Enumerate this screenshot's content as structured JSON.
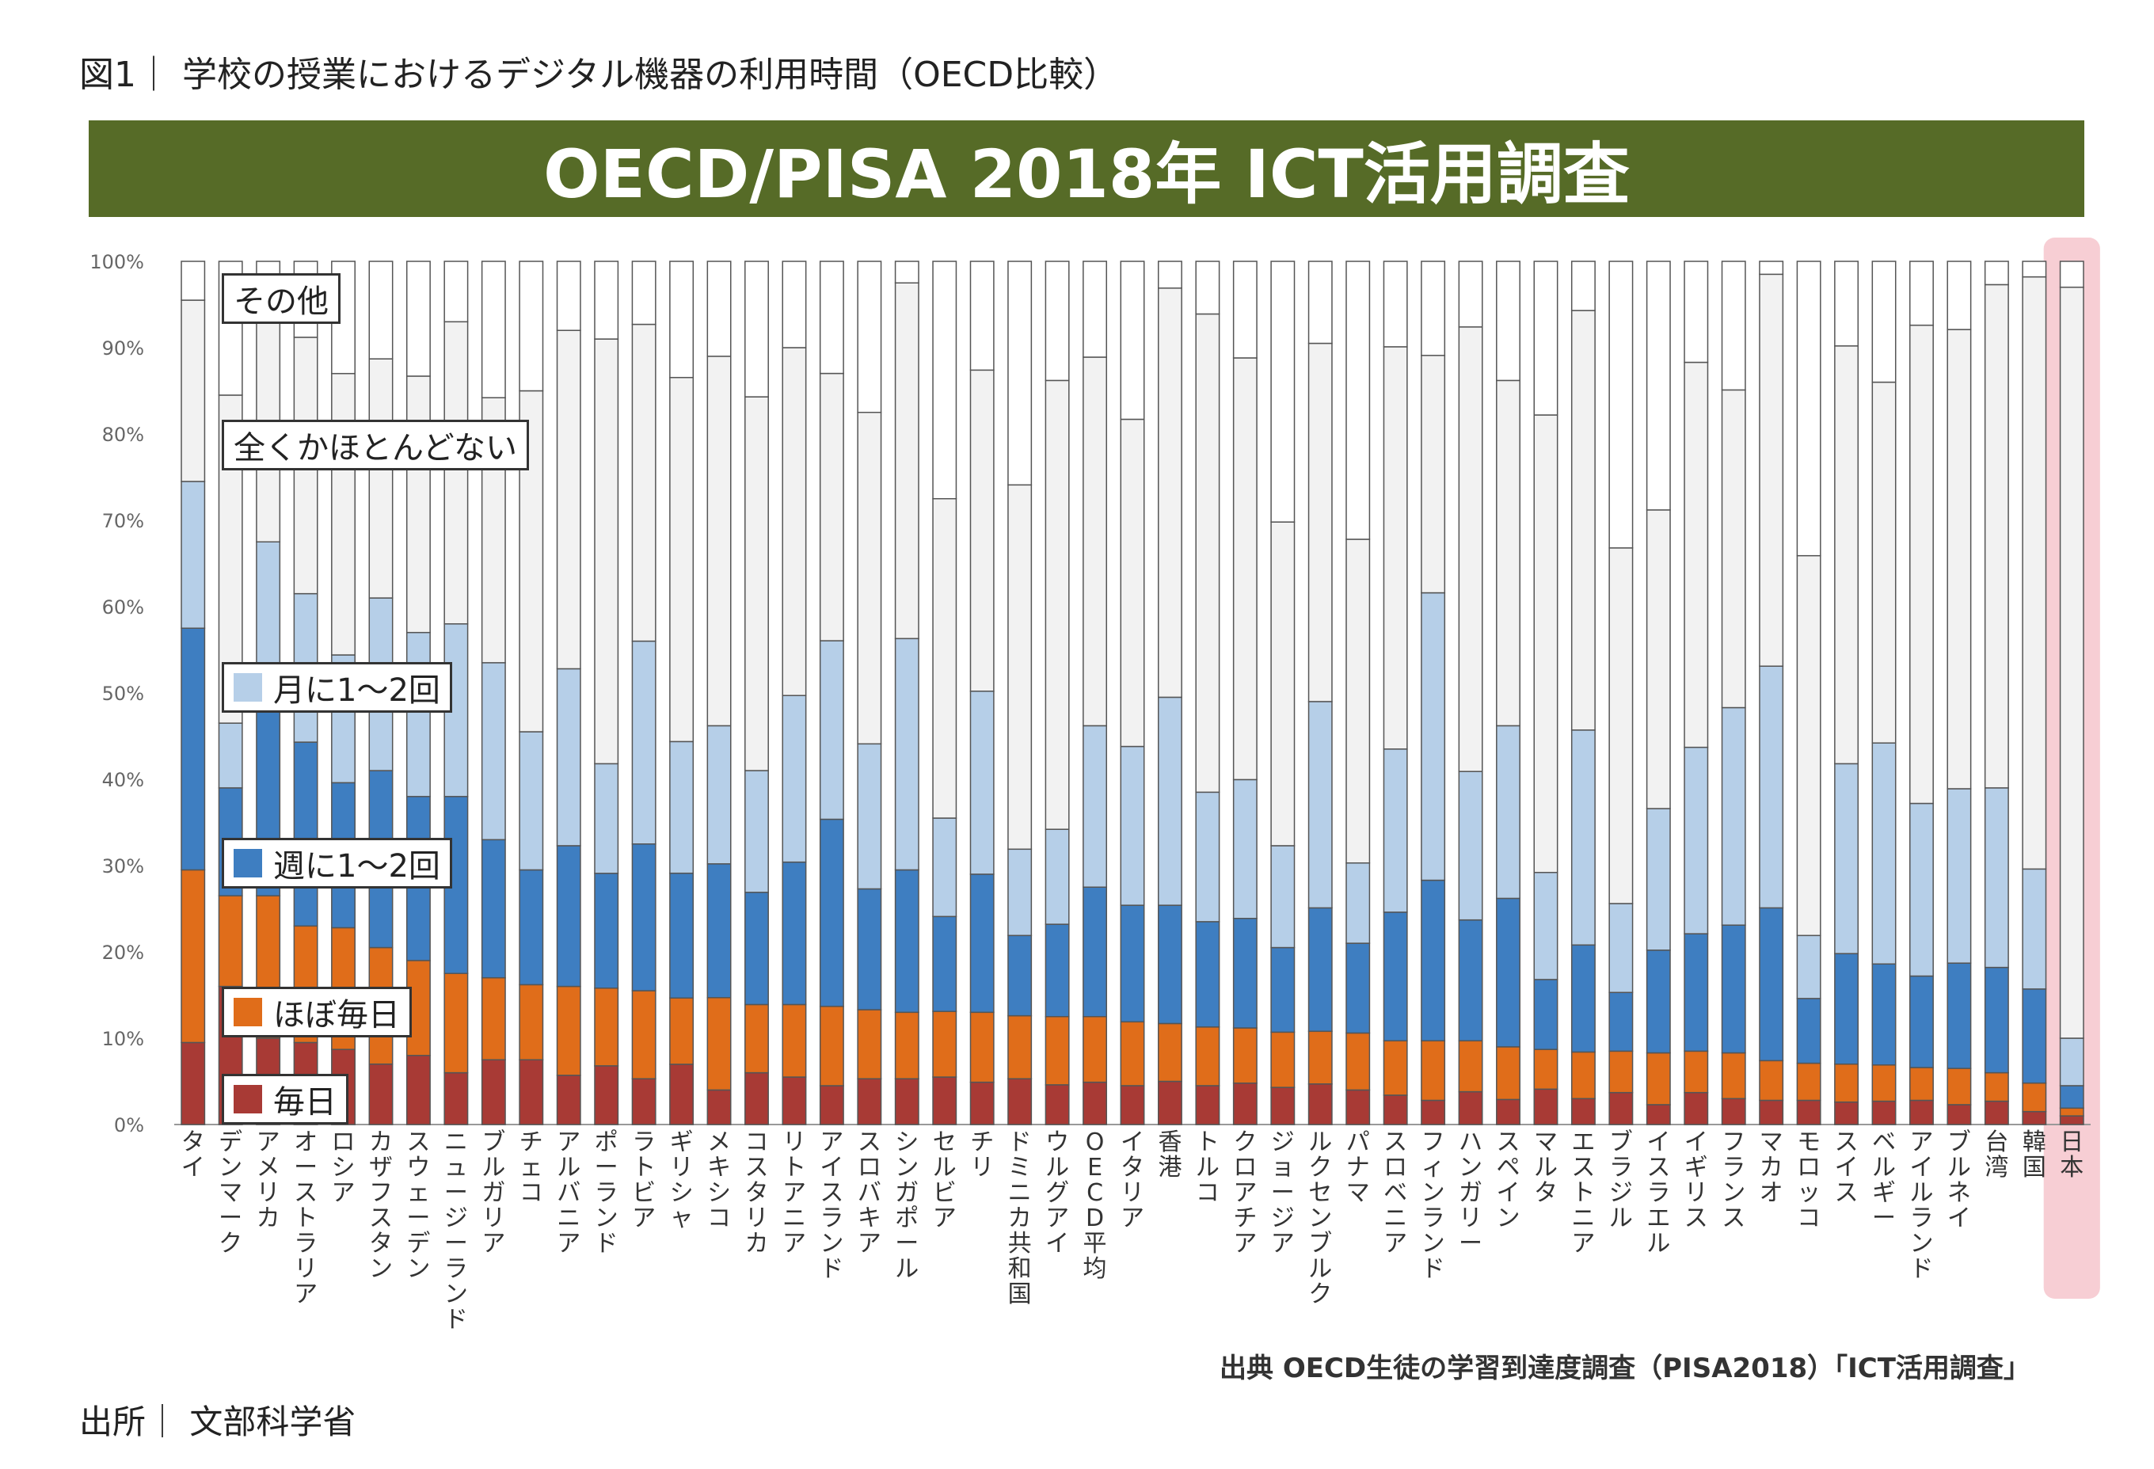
{
  "figure": {
    "title": "図1｜ 学校の授業におけるデジタル機器の利用時間（OECD比較）",
    "banner": "OECD/PISA 2018年  ICT活用調査",
    "credit": "出典  OECD生徒の学習到達度調査（PISA2018）「ICT活用調査」",
    "source": "出所｜ 文部科学省"
  },
  "colors": {
    "daily": "#a83a35",
    "almost_daily": "#e06d1a",
    "weekly": "#3e7ec1",
    "monthly": "#b6cfe8",
    "never": "#f2f2f2",
    "other": "#ffffff",
    "highlight": "#f6c6cc",
    "banner": "#566b27"
  },
  "chart_data": {
    "type": "bar",
    "stacked": true,
    "highlight_category": "日本",
    "ylim": [
      0,
      100
    ],
    "yticks": [
      "0%",
      "10%",
      "20%",
      "30%",
      "40%",
      "50%",
      "60%",
      "70%",
      "80%",
      "90%",
      "100%"
    ],
    "categories": [
      "タイ",
      "デンマーク",
      "アメリカ",
      "オーストラリア",
      "ロシア",
      "カザフスタン",
      "スウェーデン",
      "ニュージーランド",
      "ブルガリア",
      "チェコ",
      "アルバニア",
      "ポーランド",
      "ラトビア",
      "ギリシャ",
      "メキシコ",
      "コスタリカ",
      "リトアニア",
      "アイスランド",
      "スロバキア",
      "シンガポール",
      "セルビア",
      "チリ",
      "ドミニカ共和国",
      "ウルグアイ",
      "OECD平均",
      "イタリア",
      "香港",
      "トルコ",
      "クロアチア",
      "ジョージア",
      "ルクセンブルク",
      "パナマ",
      "スロベニア",
      "フィンランド",
      "ハンガリー",
      "スペイン",
      "マルタ",
      "エストニア",
      "ブラジル",
      "イスラエル",
      "イギリス",
      "フランス",
      "マカオ",
      "モロッコ",
      "スイス",
      "ベルギー",
      "アイルランド",
      "ブルネイ",
      "台湾",
      "韓国",
      "日本"
    ],
    "series": [
      {
        "name": "毎日",
        "color_key": "daily",
        "values": [
          9.5,
          16,
          10,
          9.5,
          8.7,
          7,
          8,
          6,
          7.5,
          7.5,
          5.7,
          6.8,
          5.3,
          7,
          4,
          6,
          5.5,
          4.5,
          5.3,
          5.3,
          5.5,
          4.9,
          5.3,
          4.6,
          4.9,
          4.5,
          5,
          4.5,
          4.8,
          4.3,
          4.7,
          4,
          3.4,
          2.8,
          3.8,
          2.9,
          4.1,
          3,
          3.7,
          2.3,
          3.7,
          3,
          2.8,
          2.8,
          2.6,
          2.7,
          2.8,
          2.3,
          2.7,
          1.5,
          1
        ]
      },
      {
        "name": "ほぼ毎日",
        "color_key": "almost_daily",
        "values": [
          20,
          10.5,
          16.5,
          13.5,
          14.1,
          13.5,
          11,
          11.5,
          9.5,
          8.7,
          10.3,
          9,
          10.2,
          7.7,
          10.7,
          7.9,
          8.4,
          9.2,
          8,
          7.7,
          7.6,
          8.1,
          7.3,
          7.9,
          7.6,
          7.4,
          6.7,
          6.8,
          6.4,
          6.4,
          6.1,
          6.6,
          6.3,
          6.9,
          5.9,
          6.1,
          4.6,
          5.4,
          4.8,
          6,
          4.8,
          5.3,
          4.6,
          4.3,
          4.4,
          4.2,
          3.8,
          4.2,
          3.3,
          3.3,
          0.9
        ]
      },
      {
        "name": "週に1〜2回",
        "color_key": "weekly",
        "values": [
          28,
          12.5,
          22,
          21.3,
          16.8,
          20.5,
          19,
          20.5,
          16,
          13.3,
          16.3,
          13.3,
          17,
          14.5,
          15.5,
          13,
          16.5,
          21.7,
          14,
          16.5,
          11,
          16,
          9.3,
          10.7,
          15,
          13.5,
          13.7,
          12.2,
          12.7,
          9.8,
          14.3,
          10.4,
          14.9,
          18.6,
          14,
          17.2,
          8.1,
          12.4,
          6.8,
          11.9,
          13.6,
          14.8,
          17.7,
          7.5,
          12.8,
          11.7,
          10.6,
          12.2,
          12.2,
          10.9,
          2.6
        ]
      },
      {
        "name": "月に1〜2回",
        "color_key": "monthly",
        "values": [
          17,
          7.5,
          19,
          17.2,
          14.8,
          20,
          19,
          20,
          20.5,
          16,
          20.5,
          12.7,
          23.5,
          15.3,
          16,
          14.1,
          19.3,
          20.7,
          16.8,
          26.8,
          11.4,
          21.2,
          10,
          11,
          18.7,
          18.4,
          24.1,
          15,
          16.1,
          11.8,
          23.9,
          9.3,
          18.9,
          33.3,
          17.2,
          20,
          12.4,
          24.9,
          10.3,
          16.4,
          21.6,
          25.2,
          28,
          7.3,
          22,
          25.6,
          20,
          20.2,
          20.8,
          13.9,
          5.5
        ]
      },
      {
        "name": "全くかほとんどない",
        "color_key": "never",
        "values": [
          21,
          38,
          26.5,
          29.7,
          32.6,
          27.7,
          29.7,
          35,
          30.7,
          39.5,
          39.2,
          49.2,
          36.7,
          42.3,
          42.8,
          43.3,
          40.3,
          31,
          38.4,
          41.2,
          37,
          37.2,
          42.2,
          52,
          42.7,
          37.9,
          47.4,
          55.4,
          48.9,
          37.5,
          41.5,
          37.5,
          46.6,
          27.5,
          51.5,
          40,
          53,
          48.6,
          41.2,
          34.6,
          44.6,
          36.8,
          45.4,
          44,
          48.4,
          41.8,
          55.4,
          53.2,
          58.3,
          68.6,
          87
        ]
      },
      {
        "name": "その他",
        "color_key": "other",
        "values": [
          4.5,
          15.5,
          6,
          8.8,
          13,
          11.3,
          13.3,
          7,
          15.8,
          15,
          8,
          9,
          7.3,
          13.5,
          11,
          15.7,
          10,
          13,
          17.5,
          2.5,
          27.5,
          12.6,
          25.9,
          13.8,
          11.1,
          18.3,
          3.1,
          6.1,
          11.2,
          30.2,
          9.5,
          32.2,
          9.9,
          10.9,
          7.6,
          13.8,
          17.8,
          5.7,
          33.2,
          28.8,
          11.7,
          14.9,
          1.5,
          34.1,
          9.8,
          14,
          7.4,
          7.9,
          2.7,
          1.8,
          3
        ]
      }
    ],
    "legend": [
      "その他",
      "全くかほとんどない",
      "月に1〜2回",
      "週に1〜2回",
      "ほぼ毎日",
      "毎日"
    ]
  }
}
